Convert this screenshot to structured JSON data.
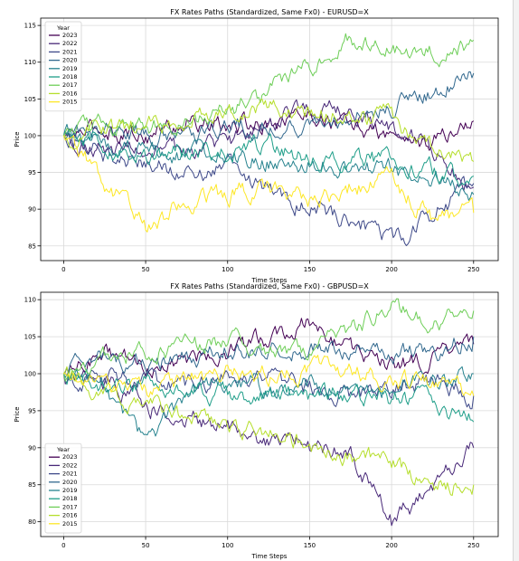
{
  "chart_data": [
    {
      "type": "line",
      "title": "FX Rates Paths (Standardized, Same Fx0) - EURUSD=X",
      "xlabel": "Time Steps",
      "ylabel": "Price",
      "xlim": [
        -14,
        265
      ],
      "ylim": [
        83,
        116
      ],
      "xticks": [
        0,
        50,
        100,
        150,
        200,
        250
      ],
      "yticks": [
        85,
        90,
        95,
        100,
        105,
        110,
        115
      ],
      "grid": true,
      "legend": {
        "title": "Year",
        "placement": "top-left"
      },
      "series": [
        {
          "name": "2023",
          "color": "#440154",
          "x": [
            0,
            25,
            50,
            75,
            100,
            125,
            150,
            175,
            200,
            225,
            250
          ],
          "values": [
            100,
            101,
            100,
            102,
            101,
            102,
            103,
            101,
            100,
            99,
            102
          ]
        },
        {
          "name": "2022",
          "color": "#482878",
          "x": [
            0,
            25,
            50,
            75,
            100,
            125,
            150,
            175,
            200,
            225,
            250
          ],
          "values": [
            100,
            98.5,
            98,
            97.5,
            99,
            101.5,
            104,
            102.5,
            101,
            98,
            93
          ]
        },
        {
          "name": "2021",
          "color": "#3e4989",
          "x": [
            0,
            25,
            50,
            75,
            100,
            125,
            150,
            175,
            200,
            225,
            250
          ],
          "values": [
            100,
            97.5,
            96.5,
            95,
            95.5,
            93,
            90,
            89,
            85.5,
            89,
            93.5
          ]
        },
        {
          "name": "2020",
          "color": "#31688e",
          "x": [
            0,
            25,
            50,
            75,
            100,
            125,
            150,
            175,
            200,
            225,
            250
          ],
          "values": [
            100,
            101,
            100.5,
            100,
            101,
            101,
            101.5,
            102,
            104,
            106,
            108.5
          ]
        },
        {
          "name": "2019",
          "color": "#26828e",
          "x": [
            0,
            25,
            50,
            75,
            100,
            125,
            150,
            175,
            200,
            225,
            250
          ],
          "values": [
            100,
            99,
            98,
            97.5,
            97,
            96.5,
            96.5,
            96,
            95.5,
            94.5,
            92
          ]
        },
        {
          "name": "2018",
          "color": "#1f9e89",
          "x": [
            0,
            25,
            50,
            75,
            100,
            125,
            150,
            175,
            200,
            225,
            250
          ],
          "values": [
            100,
            98.5,
            97.5,
            98,
            97.5,
            98.5,
            97,
            97,
            96.5,
            95,
            94.5
          ]
        },
        {
          "name": "2017",
          "color": "#6ece58",
          "x": [
            0,
            25,
            50,
            75,
            100,
            125,
            150,
            175,
            200,
            225,
            250
          ],
          "values": [
            100,
            102,
            101,
            102.5,
            103,
            106,
            109.5,
            113.5,
            112,
            111,
            113
          ]
        },
        {
          "name": "2016",
          "color": "#b5de2b",
          "x": [
            0,
            25,
            50,
            75,
            100,
            125,
            150,
            175,
            200,
            225,
            250
          ],
          "values": [
            100,
            100.5,
            101.5,
            102.5,
            103.5,
            103.5,
            103,
            102.5,
            102.5,
            98,
            96.5
          ]
        },
        {
          "name": "2015",
          "color": "#fde725",
          "x": [
            0,
            25,
            50,
            75,
            100,
            125,
            150,
            175,
            200,
            225,
            250
          ],
          "values": [
            100,
            94,
            87.5,
            91,
            92,
            93,
            91,
            93,
            94,
            88.5,
            89.5
          ]
        }
      ]
    },
    {
      "type": "line",
      "title": "FX Rates Paths (Standardized, Same Fx0) - GBPUSD=X",
      "xlabel": "Time Steps",
      "ylabel": "Price",
      "xlim": [
        -14,
        265
      ],
      "ylim": [
        78,
        111
      ],
      "xticks": [
        0,
        50,
        100,
        150,
        200,
        250
      ],
      "yticks": [
        80,
        85,
        90,
        95,
        100,
        105,
        110
      ],
      "grid": true,
      "legend": {
        "title": "Year",
        "placement": "bottom-left"
      },
      "series": [
        {
          "name": "2023",
          "color": "#440154",
          "x": [
            0,
            25,
            50,
            75,
            100,
            125,
            150,
            175,
            200,
            225,
            250
          ],
          "values": [
            100,
            103,
            101,
            102,
            103,
            105,
            107,
            103,
            101,
            102,
            104
          ]
        },
        {
          "name": "2022",
          "color": "#482878",
          "x": [
            0,
            25,
            50,
            75,
            100,
            125,
            150,
            175,
            200,
            225,
            250
          ],
          "values": [
            100,
            99,
            96,
            93.5,
            93,
            91,
            90,
            89,
            80,
            84,
            90
          ]
        },
        {
          "name": "2021",
          "color": "#3e4989",
          "x": [
            0,
            25,
            50,
            75,
            100,
            125,
            150,
            175,
            200,
            225,
            250
          ],
          "values": [
            100,
            99.5,
            99,
            98.5,
            99.5,
            99,
            98,
            97,
            98,
            99,
            97
          ]
        },
        {
          "name": "2020",
          "color": "#31688e",
          "x": [
            0,
            25,
            50,
            75,
            100,
            125,
            150,
            175,
            200,
            225,
            250
          ],
          "values": [
            100,
            102.5,
            101.5,
            102,
            103.5,
            103,
            103,
            103,
            102.5,
            103,
            105
          ]
        },
        {
          "name": "2019",
          "color": "#26828e",
          "x": [
            0,
            25,
            50,
            75,
            100,
            125,
            150,
            175,
            200,
            225,
            250
          ],
          "values": [
            100,
            98,
            91,
            97,
            99,
            98,
            99,
            98,
            98,
            99,
            100
          ]
        },
        {
          "name": "2018",
          "color": "#1f9e89",
          "x": [
            0,
            25,
            50,
            75,
            100,
            125,
            150,
            175,
            200,
            225,
            250
          ],
          "values": [
            100,
            98,
            99,
            98,
            97,
            97,
            97,
            97.5,
            96.5,
            96,
            93.5
          ]
        },
        {
          "name": "2017",
          "color": "#6ece58",
          "x": [
            0,
            25,
            50,
            75,
            100,
            125,
            150,
            175,
            200,
            225,
            250
          ],
          "values": [
            100,
            102,
            103,
            104,
            104,
            103.5,
            103,
            106,
            109,
            107,
            108.5
          ]
        },
        {
          "name": "2016",
          "color": "#b5de2b",
          "x": [
            0,
            25,
            50,
            75,
            100,
            125,
            150,
            175,
            200,
            225,
            250
          ],
          "values": [
            100,
            97,
            96,
            94,
            93,
            92.5,
            90,
            89,
            88,
            85,
            85
          ]
        },
        {
          "name": "2015",
          "color": "#fde725",
          "x": [
            0,
            25,
            50,
            75,
            100,
            125,
            150,
            175,
            200,
            225,
            250
          ],
          "values": [
            100,
            98,
            97.5,
            99,
            100,
            100,
            100.5,
            100,
            99,
            98.5,
            97
          ]
        }
      ]
    }
  ]
}
